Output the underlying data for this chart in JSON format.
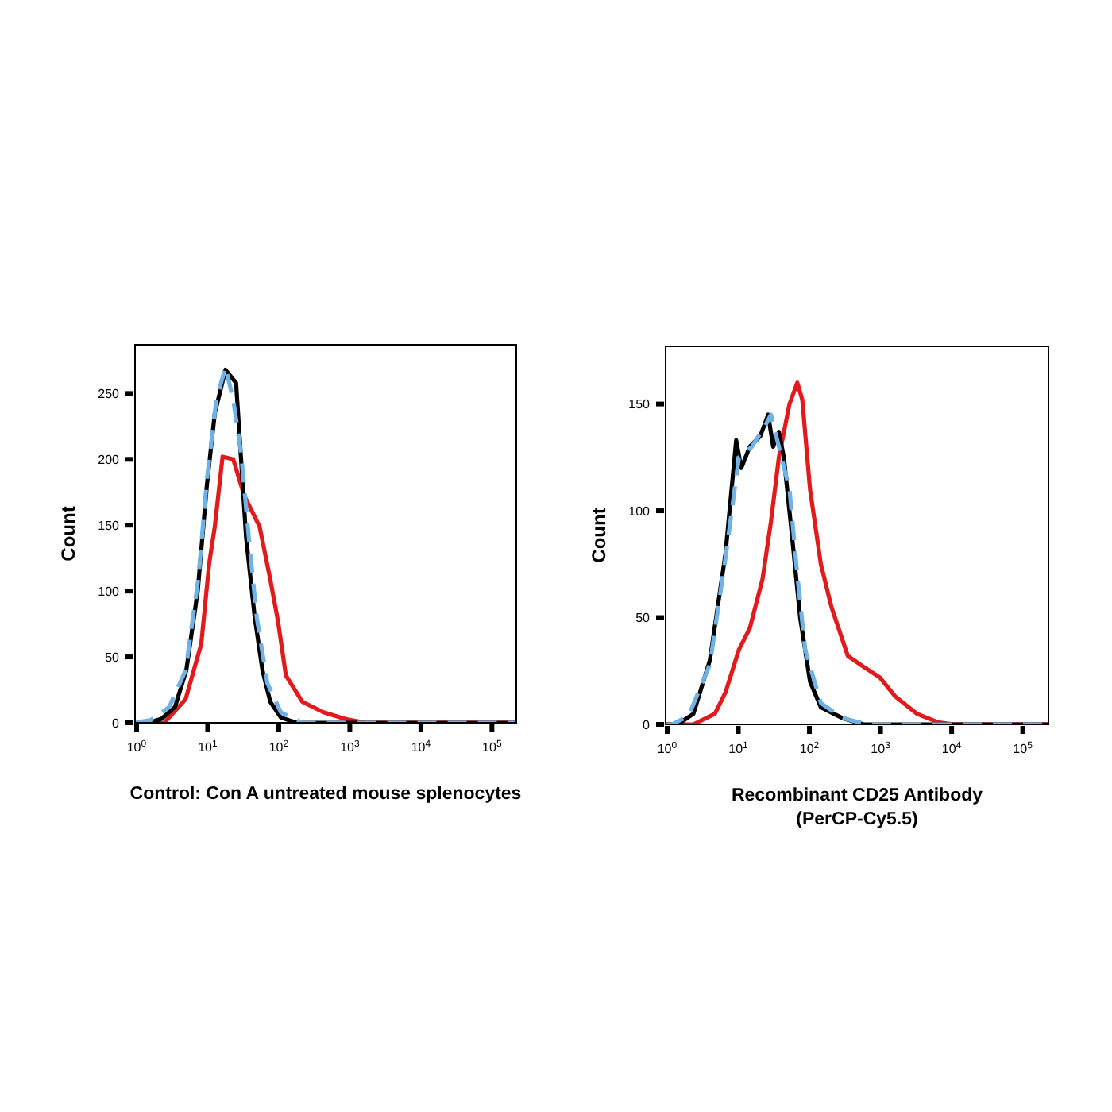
{
  "chart_data": [
    {
      "type": "line",
      "xlabel": "Control: Con A untreated mouse splenocytes",
      "ylabel": "Count",
      "log": "x",
      "grid": false,
      "xlim": [
        0.95,
        220000
      ],
      "ylim": [
        0,
        287
      ],
      "xticks": [
        {
          "value": 1,
          "label": "10$^{0}$"
        },
        {
          "value": 10,
          "label": "10$^{1}$"
        },
        {
          "value": 100,
          "label": "10$^{2}$"
        },
        {
          "value": 1000,
          "label": "10$^{3}$"
        },
        {
          "value": 10000,
          "label": "10$^{4}$"
        },
        {
          "value": 100000,
          "label": "10$^{5}$"
        }
      ],
      "yticks": [
        0,
        50,
        100,
        150,
        200,
        250
      ],
      "series": [
        {
          "color": "#e31a1c",
          "line_style": "solid",
          "x": [
            0.95,
            2.45,
            4.9,
            8.13,
            10.5,
            12.6,
            16.2,
            22.9,
            32.4,
            53.7,
            75.9,
            97.7,
            126,
            214,
            427,
            851,
            1660,
            220000
          ],
          "values": [
            0,
            0,
            18,
            60,
            121,
            149,
            202,
            200,
            173,
            149,
            109,
            77,
            36,
            16,
            8,
            3,
            0,
            0
          ]
        },
        {
          "color": "#000000",
          "line_style": "solid",
          "x": [
            0.95,
            1.45,
            2.24,
            3.47,
            5.01,
            7.24,
            9.77,
            12.6,
            17.8,
            25.1,
            29.5,
            34.7,
            45.7,
            58.9,
            75.9,
            107,
            178,
            220000
          ],
          "values": [
            0,
            0,
            3,
            12,
            40,
            100,
            181,
            235,
            268,
            258,
            200,
            141,
            81,
            40,
            16,
            4,
            0,
            0
          ]
        },
        {
          "color": "#6fb2e6",
          "line_style": "dashed",
          "x": [
            0.95,
            1.58,
            2.88,
            4.9,
            7.41,
            9.77,
            13.2,
            17.8,
            22.9,
            29.5,
            38.0,
            49.0,
            69.2,
            107,
            214,
            220000
          ],
          "values": [
            0,
            2,
            12,
            40,
            110,
            185,
            245,
            270,
            245,
            205,
            140,
            80,
            30,
            8,
            0,
            0
          ]
        }
      ]
    },
    {
      "type": "line",
      "xlabel": "Recombinant CD25 Antibody\n(PerCP-Cy5.5)",
      "ylabel": "Count",
      "log": "x",
      "grid": false,
      "xlim": [
        0.95,
        230000
      ],
      "ylim": [
        0,
        177
      ],
      "xticks": [
        {
          "value": 1,
          "label": "10$^{0}$"
        },
        {
          "value": 10,
          "label": "10$^{1}$"
        },
        {
          "value": 100,
          "label": "10$^{2}$"
        },
        {
          "value": 1000,
          "label": "10$^{3}$"
        },
        {
          "value": 10000,
          "label": "10$^{4}$"
        },
        {
          "value": 100000,
          "label": "10$^{5}$"
        }
      ],
      "yticks": [
        0,
        50,
        100,
        150
      ],
      "series": [
        {
          "color": "#e31a1c",
          "line_style": "solid",
          "x": [
            0.95,
            2.34,
            4.68,
            6.61,
            10.2,
            14.5,
            21.9,
            28.8,
            37.2,
            52.5,
            67.6,
            79.4,
            102,
            145,
            204,
            347,
            575,
            977,
            1620,
            3240,
            6460,
            10700,
            230000
          ],
          "values": [
            0,
            0,
            5,
            15,
            35,
            45,
            68,
            95,
            125,
            150,
            160,
            152,
            110,
            75,
            55,
            32,
            27,
            22,
            13,
            5,
            1,
            0,
            0
          ]
        },
        {
          "color": "#000000",
          "line_style": "solid",
          "x": [
            0.95,
            1.41,
            2.34,
            3.98,
            6.61,
            9.33,
            11.0,
            14.5,
            20.4,
            26.3,
            30.9,
            37.2,
            43.7,
            56.2,
            74.1,
            102,
            145,
            288,
            575,
            230000
          ],
          "values": [
            0,
            0,
            5,
            30,
            80,
            133,
            120,
            130,
            135,
            145,
            130,
            137,
            125,
            90,
            50,
            20,
            8,
            3,
            0,
            0
          ]
        },
        {
          "color": "#6fb2e6",
          "line_style": "dashed",
          "x": [
            0.95,
            1.17,
            2.0,
            3.98,
            6.61,
            10.2,
            15.5,
            24.0,
            28.8,
            37.2,
            52.5,
            67.6,
            87.1,
            145,
            288,
            490,
            813,
            230000
          ],
          "values": [
            0,
            0,
            4,
            28,
            78,
            125,
            130,
            140,
            145,
            130,
            110,
            70,
            35,
            10,
            3,
            1,
            0,
            0
          ]
        }
      ]
    }
  ]
}
